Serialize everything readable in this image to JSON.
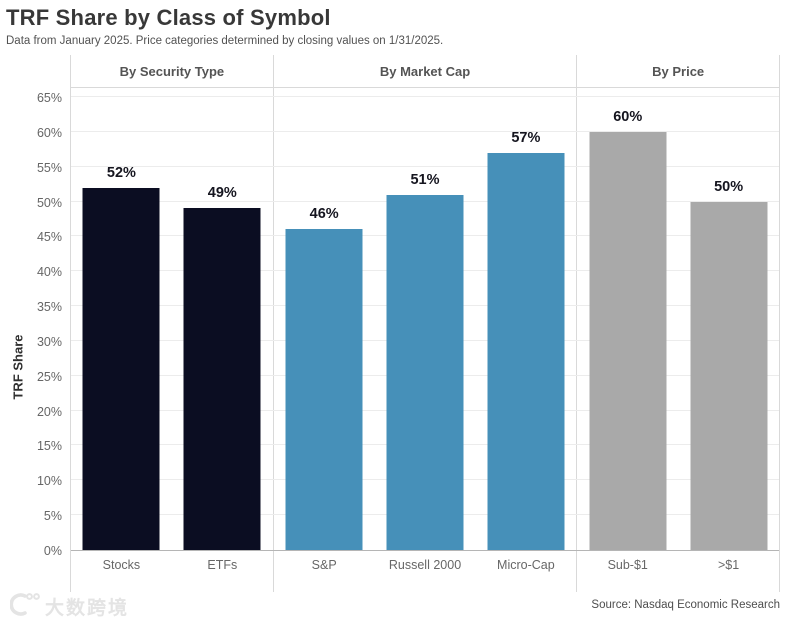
{
  "page": {
    "title": "TRF Share by Class of Symbol",
    "subtitle": "Data from January 2025. Price categories determined by closing values on 1/31/2025.",
    "source": "Source: Nasdaq Economic Research",
    "watermark_text": "大数跨境"
  },
  "chart_data": {
    "type": "bar",
    "title": "TRF Share by Class of Symbol",
    "subtitle": "Data from January 2025. Price categories determined by closing values on 1/31/2025.",
    "ylabel": "TRF Share",
    "xlabel": "",
    "ylim": [
      0,
      65
    ],
    "unit": "%",
    "grid": true,
    "legend": "none",
    "ytick_values": [
      0,
      5,
      10,
      15,
      20,
      25,
      30,
      35,
      40,
      45,
      50,
      55,
      60,
      65
    ],
    "ytick_labels": [
      "0%",
      "5%",
      "10%",
      "15%",
      "20%",
      "25%",
      "30%",
      "35%",
      "40%",
      "45%",
      "50%",
      "55%",
      "60%",
      "65%"
    ],
    "panels": [
      {
        "header": "By Security Type",
        "bar_color": "#0b0d22",
        "categories": [
          "Stocks",
          "ETFs"
        ],
        "values": [
          52,
          49
        ]
      },
      {
        "header": "By Market Cap",
        "bar_color": "#4690b9",
        "categories": [
          "S&P",
          "Russell 2000",
          "Micro-Cap"
        ],
        "values": [
          46,
          51,
          57
        ]
      },
      {
        "header": "By Price",
        "bar_color": "#a9a9a9",
        "categories": [
          "Sub-$1",
          ">$1"
        ],
        "values": [
          60,
          50
        ]
      }
    ],
    "source": "Source: Nasdaq Economic Research"
  },
  "colors": {
    "background": "#ffffff",
    "gridline": "#ececec",
    "divider": "#d9d9d9",
    "axis_line": "#b5b5b5",
    "value_label": "#15151f",
    "dark_bar": "#0b0d22",
    "blue_bar": "#4690b9",
    "gray_bar": "#a9a9a9"
  }
}
